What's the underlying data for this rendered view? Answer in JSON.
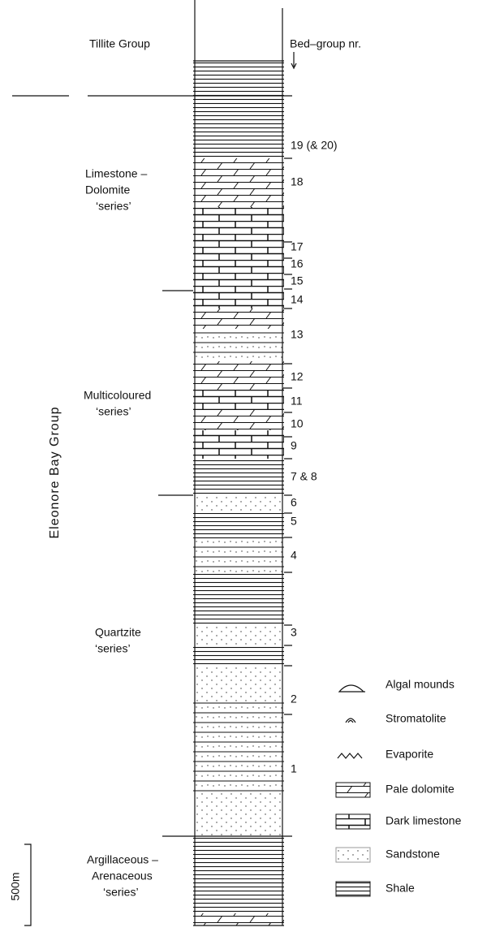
{
  "header": {
    "left": "Tillite Group",
    "right": "Bed–group nr."
  },
  "units": [
    {
      "lines": [
        "Limestone –",
        "Dolomite",
        "‘series’"
      ]
    },
    {
      "lines": [
        "Multicoloured",
        "‘series’"
      ]
    },
    {
      "lines": [
        "Quartzite",
        "‘series’"
      ]
    },
    {
      "lines": [
        "Argillaceous –",
        "Arenaceous",
        "‘series’"
      ]
    }
  ],
  "group": "Eleonore Bay Group",
  "beds": [
    "19 (& 20)",
    "18",
    "17",
    "16",
    "15",
    "14",
    "13",
    "12",
    "11",
    "10",
    "9",
    "7 & 8",
    "6",
    "5",
    "4",
    "3",
    "2",
    "1"
  ],
  "legend": [
    "Algal mounds",
    "Stromatolite",
    "Evaporite",
    "Pale dolomite",
    "Dark limestone",
    "Sandstone",
    "Shale"
  ],
  "scale": "500m"
}
